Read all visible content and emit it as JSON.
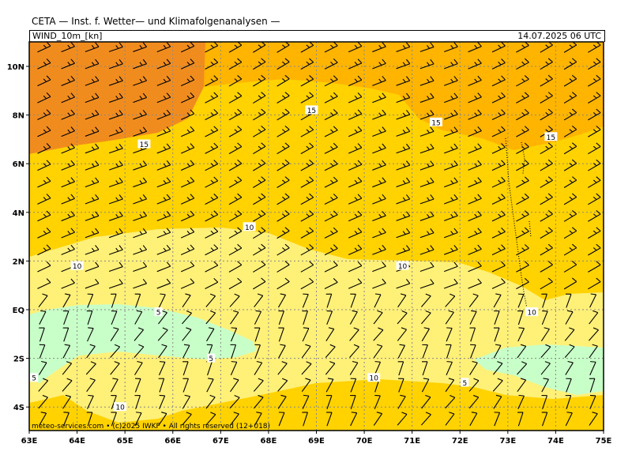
{
  "header": {
    "title": "CETA — Inst. f. Wetter— und Klimafolgenanalysen —",
    "parameter": "WIND_10m_[kn]",
    "valid_time": "14.07.2025 06 UTC"
  },
  "axes": {
    "y_labels": [
      "10N",
      "8N",
      "6N",
      "4N",
      "2N",
      "EQ",
      "2S",
      "4S"
    ],
    "x_labels": [
      "63E",
      "64E",
      "65E",
      "66E",
      "67E",
      "68E",
      "69E",
      "70E",
      "71E",
      "72E",
      "73E",
      "74E",
      "75E"
    ]
  },
  "contour_labels": [
    {
      "text": "15",
      "lon": 68.9,
      "lat": 8.2
    },
    {
      "text": "15",
      "lon": 71.5,
      "lat": 7.7
    },
    {
      "text": "15",
      "lon": 65.4,
      "lat": 6.8
    },
    {
      "text": "15",
      "lon": 73.9,
      "lat": 7.1
    },
    {
      "text": "10",
      "lon": 67.6,
      "lat": 3.4
    },
    {
      "text": "10",
      "lon": 64.0,
      "lat": 1.8
    },
    {
      "text": "10",
      "lon": 70.8,
      "lat": 1.8
    },
    {
      "text": "10",
      "lon": 73.5,
      "lat": -0.1
    },
    {
      "text": "5",
      "lon": 65.7,
      "lat": -0.1
    },
    {
      "text": "5",
      "lon": 66.8,
      "lat": -2.0
    },
    {
      "text": "5",
      "lon": 63.1,
      "lat": -2.8
    },
    {
      "text": "10",
      "lon": 70.2,
      "lat": -2.8
    },
    {
      "text": "5",
      "lon": 72.1,
      "lat": -3.0
    },
    {
      "text": "10",
      "lon": 64.9,
      "lat": -4.0
    }
  ],
  "colors": {
    "dark_orange": "#f08c1e",
    "orange": "#ffb400",
    "gold": "#ffd200",
    "light_yellow": "#fff078",
    "light_green": "#c8ffc8"
  },
  "credit": "meteo-services.com • (c)2025 IWKF • All rights reserved (12+018)"
}
